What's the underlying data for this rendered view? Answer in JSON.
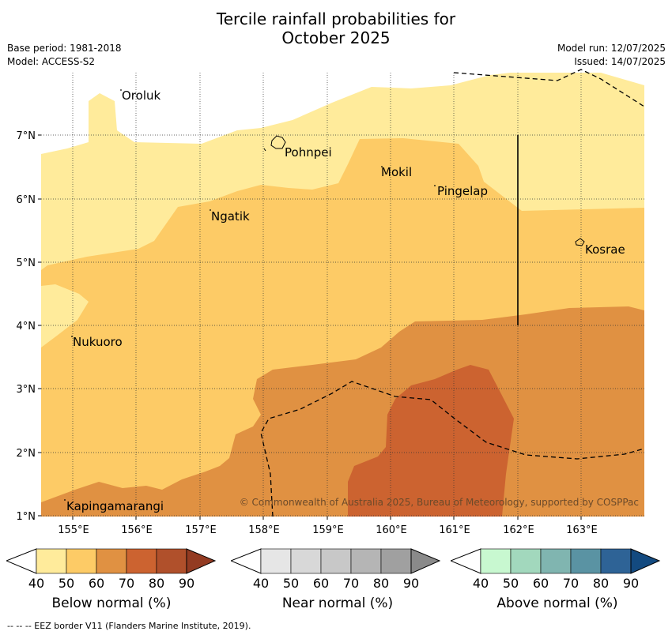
{
  "title_line1": "Tercile rainfall probabilities for",
  "title_line2": "October 2025",
  "meta_left": {
    "base_period": "Base period: 1981-2018",
    "model": "Model: ACCESS-S2"
  },
  "meta_right": {
    "model_run": "Model run: 12/07/2025",
    "issued": "Issued: 14/07/2025"
  },
  "map": {
    "lon_labels": [
      "155°E",
      "156°E",
      "157°E",
      "158°E",
      "159°E",
      "160°E",
      "161°E",
      "162°E",
      "163°E"
    ],
    "lat_labels": [
      "7°N",
      "6°N",
      "5°N",
      "4°N",
      "3°N",
      "2°N",
      "1°N"
    ],
    "places": {
      "oroluk": "Oroluk",
      "pohnpei": "Pohnpei",
      "mokil": "Mokil",
      "pingelap": "Pingelap",
      "ngatik": "Ngatik",
      "kosrae": "Kosrae",
      "nukuoro": "Nukuoro",
      "kapingamarangi": "Kapingamarangi"
    },
    "copyright": "© Commonwealth of Australia 2025, Bureau of Meteorology, supported by COSPPac"
  },
  "legend": {
    "tick_labels": [
      "40",
      "50",
      "60",
      "70",
      "80",
      "90"
    ],
    "below": {
      "caption": "Below normal (%)",
      "colors": [
        "#ffeb9b",
        "#fdcb66",
        "#e09142",
        "#cc6330",
        "#b0502b",
        "#933b22"
      ]
    },
    "near": {
      "caption": "Near normal (%)",
      "colors": [
        "#e6e6e6",
        "#d8d8d8",
        "#c8c8c8",
        "#b5b5b5",
        "#a0a0a0",
        "#8a8a8a"
      ]
    },
    "above": {
      "caption": "Above normal (%)",
      "colors": [
        "#c8f8d0",
        "#a2d8bd",
        "#80b5b0",
        "#5a93a3",
        "#2e6396",
        "#134a80"
      ]
    }
  },
  "footer": "--  --  -- EEZ border V11 (Flanders Marine Institute, 2019)."
}
